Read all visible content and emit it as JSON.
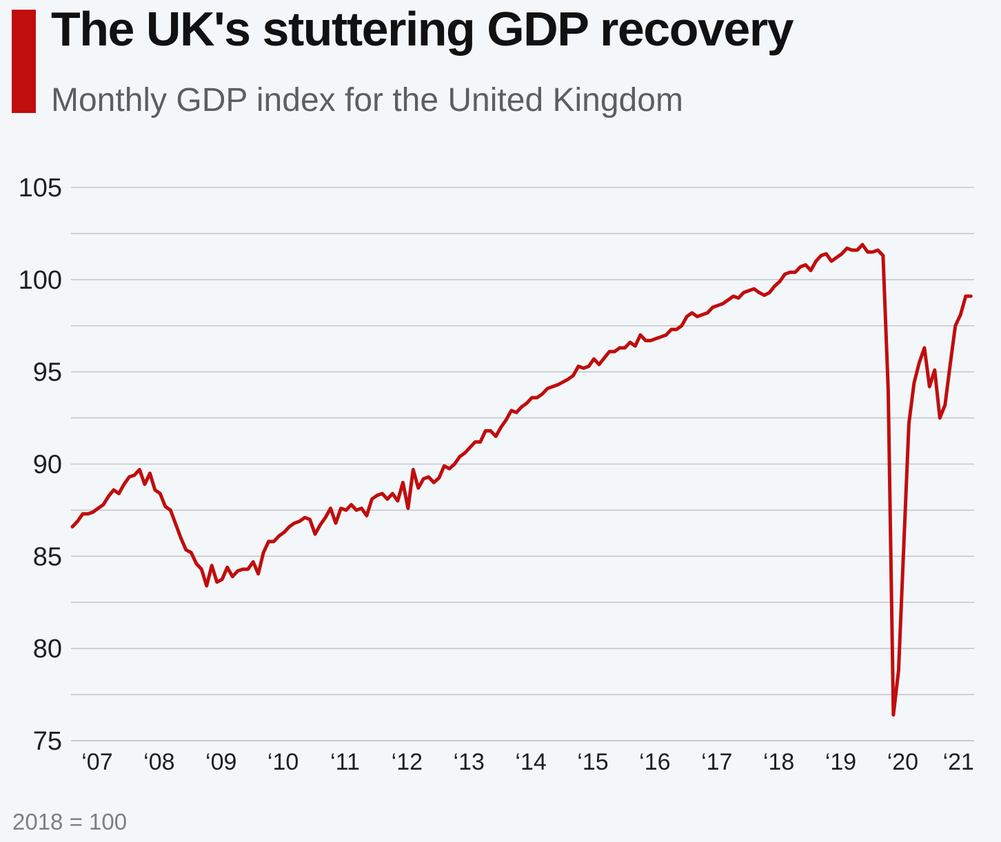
{
  "header": {
    "title": "The UK's stuttering GDP recovery",
    "subtitle": "Monthly GDP index for the United Kingdom",
    "accent_color": "#c00d0d"
  },
  "footer": {
    "note": "2018 = 100"
  },
  "chart_data": {
    "type": "line",
    "title": "The UK's stuttering GDP recovery",
    "subtitle": "Monthly GDP index for the United Kingdom",
    "xlabel": "",
    "ylabel": "",
    "x_start": "2007-01",
    "x_end": "2021-07",
    "x_frequency": "monthly",
    "ylim": [
      75,
      105
    ],
    "yticks": [
      105,
      100,
      95,
      90,
      85,
      80,
      75
    ],
    "xtick_labels": [
      "‘07",
      "‘08",
      "‘09",
      "‘10",
      "‘11",
      "‘12",
      "‘13",
      "‘14",
      "‘15",
      "‘16",
      "‘17",
      "‘18",
      "‘19",
      "‘20",
      "‘21"
    ],
    "grid": true,
    "legend": "none",
    "line_color": "#c00d0d",
    "series": [
      {
        "values": [
          86.6,
          86.9,
          87.3,
          87.3,
          87.4,
          87.6,
          87.8,
          88.25,
          88.6,
          88.4,
          88.9,
          89.3,
          89.4,
          89.7,
          88.9,
          89.5,
          88.6,
          88.4,
          87.7,
          87.5,
          86.75,
          86.0,
          85.35,
          85.2,
          84.6,
          84.3,
          83.4,
          84.5,
          83.6,
          83.75,
          84.4,
          83.9,
          84.2,
          84.3,
          84.3,
          84.7,
          84.05,
          85.2,
          85.8,
          85.8,
          86.1,
          86.3,
          86.6,
          86.8,
          86.9,
          87.1,
          87.0,
          86.2,
          86.7,
          87.1,
          87.6,
          86.8,
          87.6,
          87.5,
          87.8,
          87.5,
          87.6,
          87.2,
          88.1,
          88.3,
          88.4,
          88.1,
          88.4,
          88.0,
          89.0,
          87.6,
          89.7,
          88.7,
          89.2,
          89.3,
          89.0,
          89.25,
          89.9,
          89.75,
          90.0,
          90.4,
          90.6,
          90.9,
          91.2,
          91.2,
          91.8,
          91.8,
          91.5,
          92.0,
          92.4,
          92.9,
          92.8,
          93.1,
          93.3,
          93.6,
          93.6,
          93.8,
          94.1,
          94.2,
          94.3,
          94.45,
          94.6,
          94.8,
          95.3,
          95.2,
          95.3,
          95.7,
          95.4,
          95.75,
          96.1,
          96.1,
          96.3,
          96.3,
          96.6,
          96.4,
          97.0,
          96.7,
          96.7,
          96.8,
          96.9,
          97.0,
          97.3,
          97.3,
          97.5,
          98.0,
          98.2,
          98.0,
          98.1,
          98.2,
          98.5,
          98.6,
          98.7,
          98.9,
          99.1,
          99.0,
          99.3,
          99.4,
          99.5,
          99.3,
          99.15,
          99.3,
          99.65,
          99.9,
          100.3,
          100.4,
          100.4,
          100.7,
          100.8,
          100.5,
          101.0,
          101.3,
          101.4,
          101.0,
          101.2,
          101.4,
          101.7,
          101.6,
          101.6,
          101.9,
          101.5,
          101.5,
          101.6,
          101.3,
          94.0,
          76.4,
          78.8,
          85.5,
          92.2,
          94.4,
          95.5,
          96.3,
          94.2,
          95.1,
          92.5,
          93.2,
          95.4,
          97.5,
          98.1,
          99.1,
          99.1
        ]
      }
    ]
  }
}
